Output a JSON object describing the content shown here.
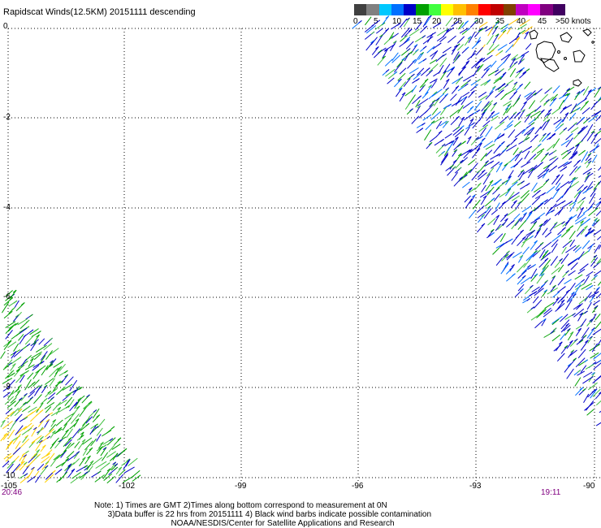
{
  "title": "Rapidscat Winds(12.5KM) 20151111 descending",
  "legend": {
    "labels": [
      "0",
      "5",
      "10",
      "15",
      "20",
      "25",
      "30",
      "35",
      "40",
      "45",
      ">50 knots"
    ],
    "colors": [
      "#404040",
      "#808080",
      "#00c8ff",
      "#0070ff",
      "#0000c8",
      "#00a000",
      "#40ff40",
      "#ffff00",
      "#ffc000",
      "#ff8000",
      "#ff0000",
      "#c00000",
      "#804000",
      "#c000c0",
      "#ff00ff",
      "#800080",
      "#400060"
    ]
  },
  "axes": {
    "lat_labels": [
      "0",
      "-2",
      "-4",
      "-6",
      "-8",
      "-10"
    ],
    "lon_labels": [
      "-105",
      "-102",
      "-99",
      "-96",
      "-93",
      "-90"
    ]
  },
  "times": {
    "left": "20:46",
    "right": "19:11"
  },
  "notes": [
    "Note: 1) Times are GMT 2)Times along bottom correspond to measurement at 0N",
    "      3)Data buffer is 22 hrs from 20151111 4) Black wind barbs indicate possible contamination",
    "                                  NOAA/NESDIS/Center for Satellite Applications and Research"
  ]
}
